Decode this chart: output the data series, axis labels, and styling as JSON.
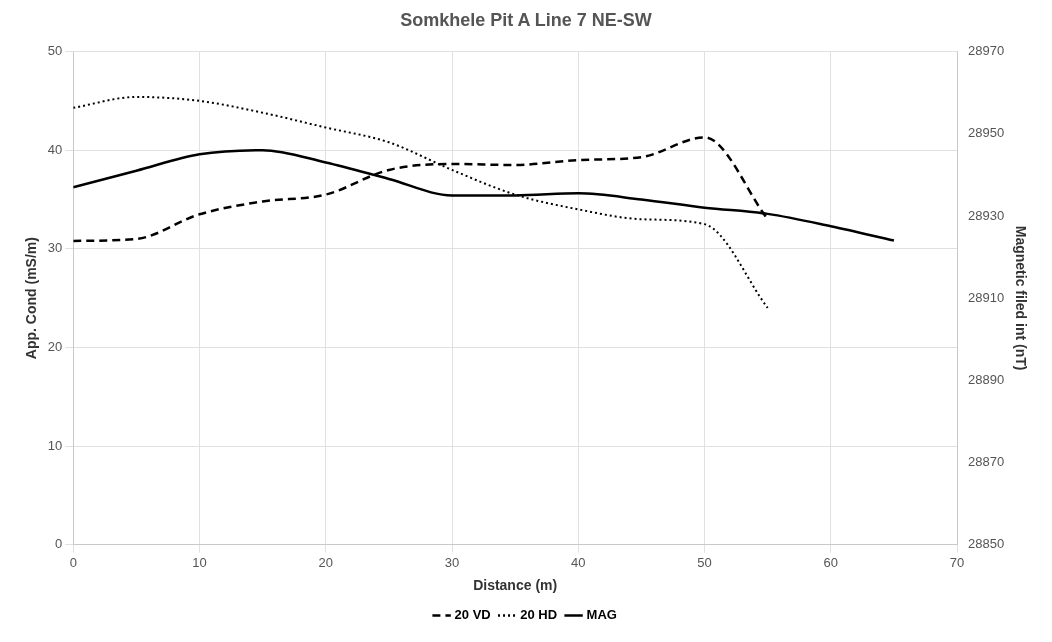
{
  "chart_data": {
    "type": "line",
    "title": "Somkhele Pit A Line 7 NE-SW",
    "xlabel": "Distance (m)",
    "ylabel": "App. Cond (mS/m)",
    "y2label": "Magnetic filed int (nT)",
    "xlim": [
      0,
      70
    ],
    "xticks": [
      0,
      10,
      20,
      30,
      40,
      50,
      60,
      70
    ],
    "ylim": [
      0,
      50
    ],
    "yticks": [
      0,
      10,
      20,
      30,
      40,
      50
    ],
    "y2lim": [
      28850,
      28970
    ],
    "y2ticks": [
      28850,
      28870,
      28890,
      28910,
      28930,
      28950,
      28970
    ],
    "grid": true,
    "legend": "bottom",
    "marker": "none",
    "series": [
      {
        "name": "20 VD",
        "color": "#000000",
        "line_style": "dashed",
        "x": [
          0,
          5,
          10,
          15,
          20,
          25,
          30,
          35,
          40,
          45,
          50,
          55
        ],
        "values": [
          30.8,
          31,
          33.5,
          34.8,
          35.5,
          38,
          38.6,
          38.5,
          39,
          39.3,
          41.3,
          33
        ]
      },
      {
        "name": "20 HD",
        "color": "#000000",
        "line_style": "dotted",
        "x": [
          0,
          5,
          10,
          15,
          20,
          25,
          30,
          35,
          40,
          45,
          50,
          55
        ],
        "values": [
          44.3,
          45.4,
          45,
          43.8,
          42.3,
          40.8,
          38,
          35.5,
          34,
          33,
          32.5,
          24
        ]
      },
      {
        "name": "MAG",
        "color": "#000000",
        "line_style": "solid",
        "axis": "y2",
        "x": [
          0,
          5,
          10,
          15,
          20,
          25,
          30,
          35,
          40,
          45,
          50,
          55,
          60,
          65
        ],
        "values": [
          28937,
          28941,
          28945,
          28946,
          28943,
          28939,
          28935,
          28935,
          28935.5,
          28934,
          28932,
          28930.5,
          28927.5,
          28924
        ]
      }
    ]
  }
}
